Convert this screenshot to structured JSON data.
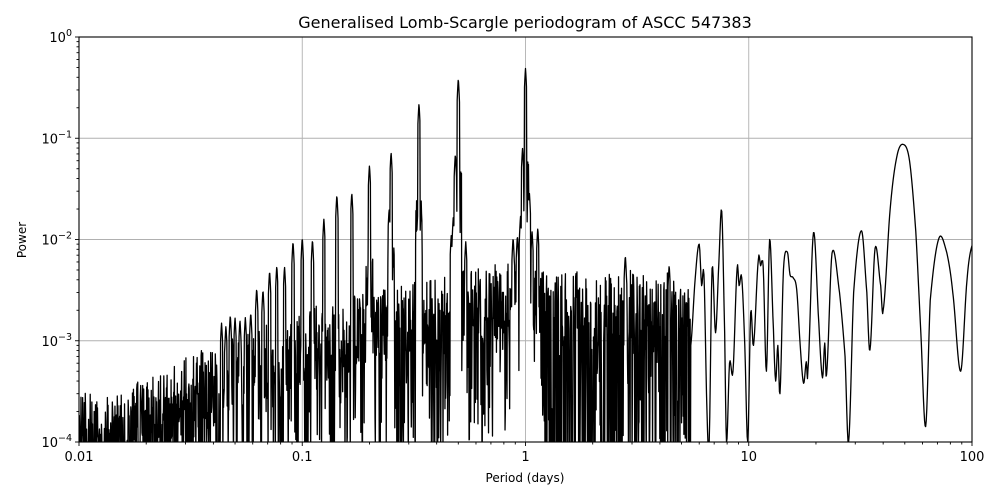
{
  "chart_data": {
    "type": "line",
    "title": "Generalised Lomb-Scargle periodogram of ASCC 547383",
    "xlabel": "Period (days)",
    "ylabel": "Power",
    "xscale": "log",
    "yscale": "log",
    "xlim": [
      0.01,
      100
    ],
    "ylim": [
      0.0001,
      1
    ],
    "grid": true,
    "legend": null,
    "line_color": "#000000",
    "grid_color": "#b0b0b0",
    "x_ticks": [
      {
        "value": 0.01,
        "label": "0.01"
      },
      {
        "value": 0.1,
        "label": "0.1"
      },
      {
        "value": 1,
        "label": "1"
      },
      {
        "value": 10,
        "label": "10"
      },
      {
        "value": 100,
        "label": "100"
      }
    ],
    "y_ticks": [
      {
        "value": 1,
        "base": "10",
        "exp": "0"
      },
      {
        "value": 0.1,
        "base": "10",
        "exp": "−1"
      },
      {
        "value": 0.01,
        "base": "10",
        "exp": "−2"
      },
      {
        "value": 0.001,
        "base": "10",
        "exp": "−3"
      },
      {
        "value": 0.0001,
        "base": "10",
        "exp": "−4"
      }
    ],
    "harmonic_peaks": [
      {
        "period": 1.0,
        "power": 0.49
      },
      {
        "period": 0.5,
        "power": 0.39
      },
      {
        "period": 0.3333,
        "power": 0.22
      },
      {
        "period": 0.25,
        "power": 0.073
      },
      {
        "period": 0.2,
        "power": 0.054
      },
      {
        "period": 0.1667,
        "power": 0.029
      },
      {
        "period": 0.1429,
        "power": 0.0276
      },
      {
        "period": 0.125,
        "power": 0.016
      },
      {
        "period": 0.1111,
        "power": 0.01
      },
      {
        "period": 0.1,
        "power": 0.0105
      },
      {
        "period": 0.0909,
        "power": 0.0096
      },
      {
        "period": 0.0833,
        "power": 0.0054
      },
      {
        "period": 0.0769,
        "power": 0.0055
      },
      {
        "period": 0.0714,
        "power": 0.0049
      },
      {
        "period": 0.0667,
        "power": 0.0032
      },
      {
        "period": 0.0625,
        "power": 0.0033
      },
      {
        "period": 0.0588,
        "power": 0.0019
      },
      {
        "period": 0.0556,
        "power": 0.0017
      },
      {
        "period": 0.0526,
        "power": 0.0016
      },
      {
        "period": 0.05,
        "power": 0.0017
      },
      {
        "period": 0.0476,
        "power": 0.0018
      },
      {
        "period": 0.0455,
        "power": 0.0014
      },
      {
        "period": 0.0435,
        "power": 0.0015
      },
      {
        "period": 1.135,
        "power": 0.013
      },
      {
        "period": 0.97,
        "power": 0.08
      },
      {
        "period": 0.485,
        "power": 0.07
      }
    ],
    "sidelobe_peaks": [
      {
        "period": 0.95,
        "power": 0.017
      },
      {
        "period": 1.04,
        "power": 0.03
      },
      {
        "period": 0.92,
        "power": 0.011
      },
      {
        "period": 1.07,
        "power": 0.012
      },
      {
        "period": 0.475,
        "power": 0.017
      },
      {
        "period": 0.51,
        "power": 0.012
      },
      {
        "period": 0.465,
        "power": 0.011
      },
      {
        "period": 0.33,
        "power": 0.02
      },
      {
        "period": 0.245,
        "power": 0.02
      },
      {
        "period": 0.88,
        "power": 0.0105
      },
      {
        "period": 0.54,
        "power": 0.0095
      },
      {
        "period": 2.8,
        "power": 0.007
      },
      {
        "period": 4.4,
        "power": 0.0056
      }
    ],
    "noise_envelope": [
      [
        0.01,
        0.00035
      ],
      [
        0.02,
        0.0004
      ],
      [
        0.03,
        0.0007
      ],
      [
        0.05,
        0.0011
      ],
      [
        0.08,
        0.0016
      ],
      [
        0.1,
        0.002
      ],
      [
        0.2,
        0.0032
      ],
      [
        0.4,
        0.0045
      ],
      [
        0.8,
        0.006
      ],
      [
        1.0,
        0.006
      ],
      [
        2.0,
        0.0045
      ],
      [
        3.0,
        0.005
      ],
      [
        5.5,
        0.0045
      ]
    ],
    "long_period_curve": [
      [
        5.5,
        0.0009
      ],
      [
        5.75,
        0.004
      ],
      [
        6.0,
        0.009
      ],
      [
        6.15,
        0.0035
      ],
      [
        6.3,
        0.0045
      ],
      [
        6.5,
        0.0002
      ],
      [
        6.65,
        0.0001
      ],
      [
        6.85,
        0.0052
      ],
      [
        7.1,
        0.0012
      ],
      [
        7.35,
        0.006
      ],
      [
        7.57,
        0.019
      ],
      [
        7.8,
        0.0012
      ],
      [
        7.95,
        0.0001
      ],
      [
        8.2,
        0.0006
      ],
      [
        8.5,
        0.0005
      ],
      [
        8.87,
        0.0052
      ],
      [
        9.05,
        0.0035
      ],
      [
        9.3,
        0.0042
      ],
      [
        9.6,
        0.0009
      ],
      [
        9.9,
        0.0001
      ],
      [
        10.2,
        0.0019
      ],
      [
        10.5,
        0.0009
      ],
      [
        11.04,
        0.0063
      ],
      [
        11.3,
        0.0055
      ],
      [
        11.6,
        0.0055
      ],
      [
        12.0,
        0.0005
      ],
      [
        12.4,
        0.01
      ],
      [
        12.9,
        0.0013
      ],
      [
        13.2,
        0.0004
      ],
      [
        13.5,
        0.0009
      ],
      [
        13.8,
        0.0003
      ],
      [
        14.3,
        0.005
      ],
      [
        14.9,
        0.0075
      ],
      [
        15.3,
        0.0045
      ],
      [
        15.8,
        0.0042
      ],
      [
        16.4,
        0.0032
      ],
      [
        17.0,
        0.0009
      ],
      [
        17.6,
        0.00038
      ],
      [
        18.1,
        0.00062
      ],
      [
        18.4,
        0.0005
      ],
      [
        19.5,
        0.0117
      ],
      [
        20.6,
        0.0015
      ],
      [
        21.4,
        0.00043
      ],
      [
        21.9,
        0.00095
      ],
      [
        22.3,
        0.00046
      ],
      [
        23.6,
        0.0073
      ],
      [
        25.5,
        0.003
      ],
      [
        27.0,
        0.0007
      ],
      [
        28.0,
        0.0001
      ],
      [
        29.5,
        0.003
      ],
      [
        32.0,
        0.0122
      ],
      [
        33.8,
        0.003
      ],
      [
        34.9,
        0.00081
      ],
      [
        36.8,
        0.0082
      ],
      [
        39.0,
        0.0035
      ],
      [
        40.0,
        0.002
      ],
      [
        43.0,
        0.02
      ],
      [
        46.0,
        0.065
      ],
      [
        49.1,
        0.087
      ],
      [
        52.5,
        0.06
      ],
      [
        56.0,
        0.012
      ],
      [
        59.0,
        0.0012
      ],
      [
        62.0,
        0.000142
      ],
      [
        65.0,
        0.0025
      ],
      [
        71.0,
        0.0102
      ],
      [
        77.0,
        0.0075
      ],
      [
        82.0,
        0.003
      ],
      [
        89.0,
        0.0005
      ],
      [
        95.0,
        0.004
      ],
      [
        100.0,
        0.0087
      ]
    ]
  }
}
